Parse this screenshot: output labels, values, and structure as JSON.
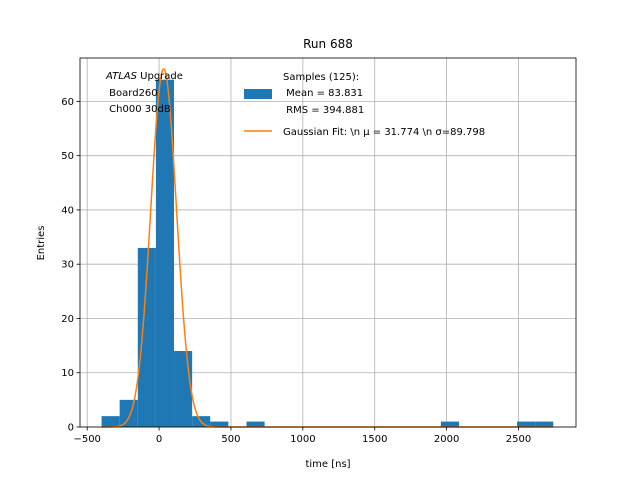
{
  "chart_data": {
    "type": "bar",
    "title": "Run 688",
    "xlabel": "time [ns]",
    "ylabel": "Entries",
    "xlim": [
      -550,
      2900
    ],
    "ylim": [
      0,
      68
    ],
    "xticks": [
      -500,
      0,
      500,
      1000,
      1500,
      2000,
      2500
    ],
    "yticks": [
      0,
      10,
      20,
      30,
      40,
      50,
      60
    ],
    "grid": true,
    "legend_position": "top-right",
    "annotation": {
      "atlas_italic": "ATLAS",
      "atlas_rest": " Upgrade",
      "line2": " Board260",
      "line3": " Ch000 30dB"
    },
    "histogram": {
      "name_lines": [
        "Samples (125):",
        " Mean = 83.831",
        " RMS = 394.881"
      ],
      "color": "#1f77b4",
      "bins": [
        {
          "x0": -400,
          "x1": -274,
          "count": 2
        },
        {
          "x0": -274,
          "x1": -148,
          "count": 5
        },
        {
          "x0": -148,
          "x1": -22,
          "count": 33
        },
        {
          "x0": -22,
          "x1": 104,
          "count": 64
        },
        {
          "x0": 104,
          "x1": 230,
          "count": 14
        },
        {
          "x0": 230,
          "x1": 356,
          "count": 2
        },
        {
          "x0": 356,
          "x1": 482,
          "count": 1
        },
        {
          "x0": 482,
          "x1": 608,
          "count": 0
        },
        {
          "x0": 608,
          "x1": 734,
          "count": 1
        },
        {
          "x0": 734,
          "x1": 1960,
          "count": 0
        },
        {
          "x0": 1960,
          "x1": 2086,
          "count": 1
        },
        {
          "x0": 2086,
          "x1": 2490,
          "count": 0
        },
        {
          "x0": 2490,
          "x1": 2616,
          "count": 1
        },
        {
          "x0": 2616,
          "x1": 2742,
          "count": 1
        }
      ]
    },
    "fit": {
      "name": "Gaussian Fit: \\n μ = 31.774 \\n σ=89.798",
      "color": "#ff7f0e",
      "mu": 31.774,
      "sigma": 89.798,
      "amplitude": 66,
      "x_range": [
        -400,
        2742
      ]
    }
  }
}
